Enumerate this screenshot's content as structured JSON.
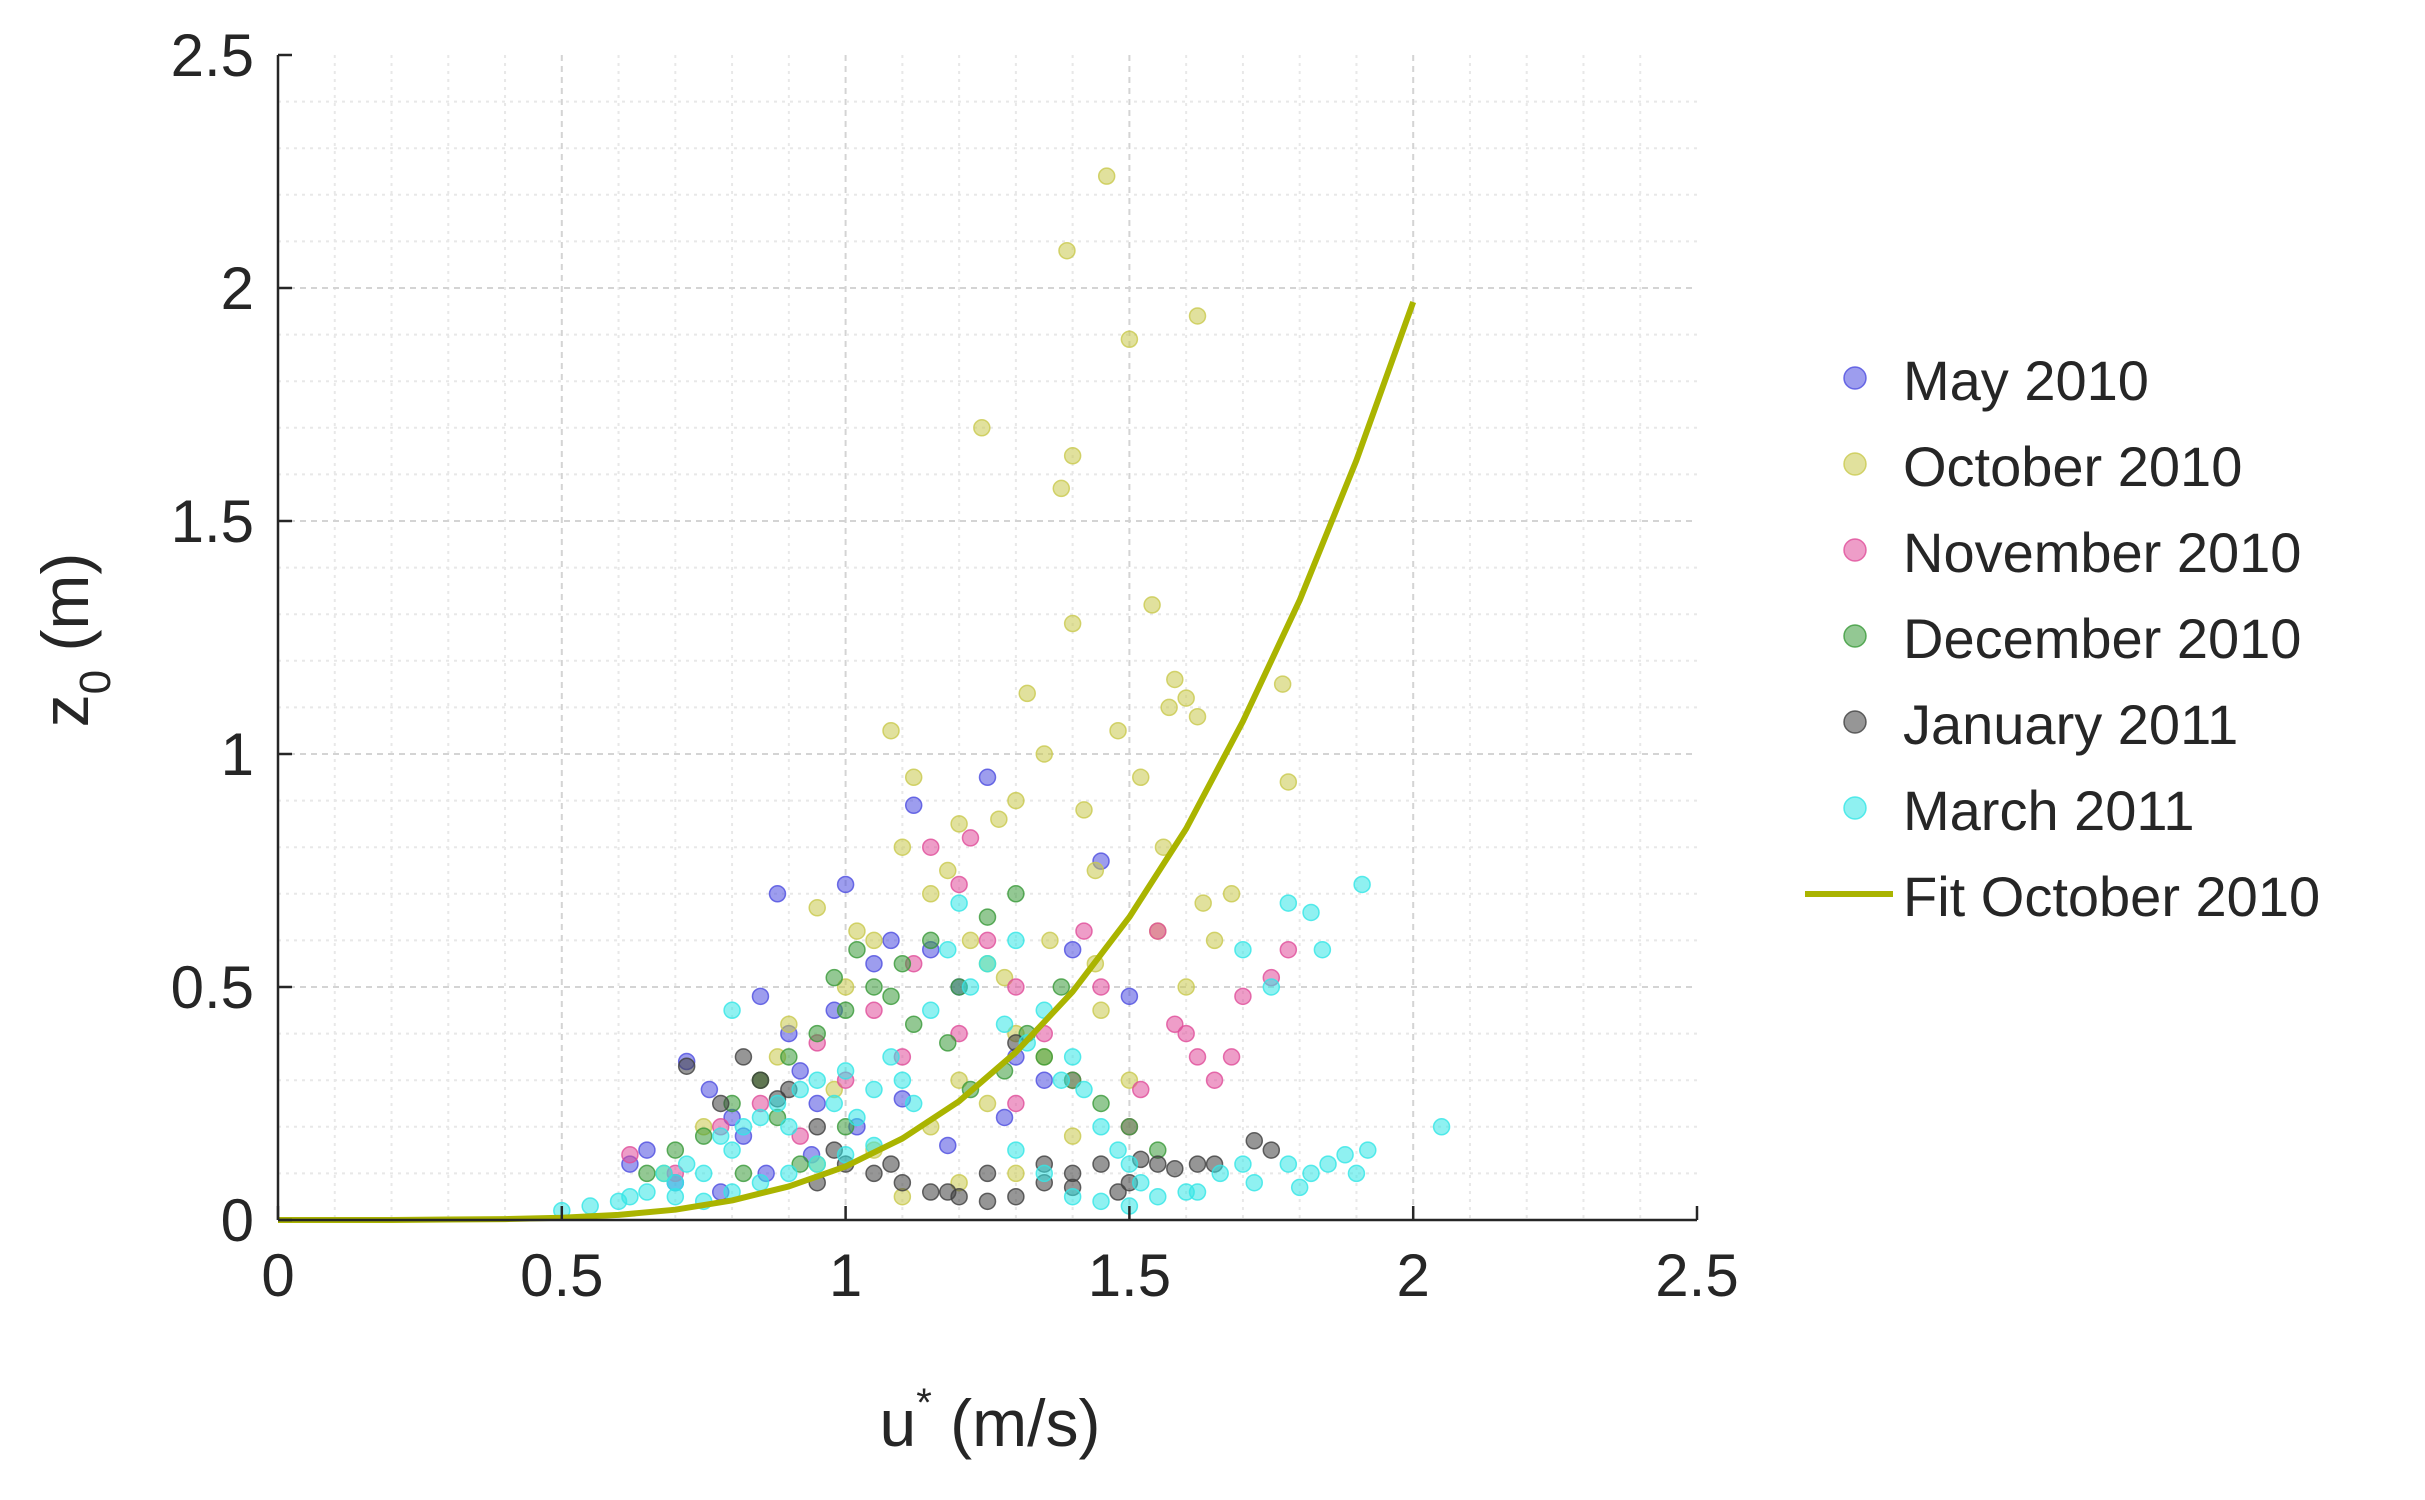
{
  "chart_data": {
    "type": "scatter",
    "title": "",
    "xlabel": {
      "base": "u",
      "sup": "*",
      "rest": " (m/s)"
    },
    "ylabel": {
      "base": "z",
      "sub": "0",
      "rest": " (m)"
    },
    "xlim": [
      0,
      2.5
    ],
    "ylim": [
      0,
      2.5
    ],
    "xticks": [
      0,
      0.5,
      1,
      1.5,
      2,
      2.5
    ],
    "xtick_labels": [
      "0",
      "0.5",
      "1",
      "1.5",
      "2",
      "2.5"
    ],
    "yticks": [
      0,
      0.5,
      1,
      1.5,
      2,
      2.5
    ],
    "ytick_labels": [
      "0",
      "0.5",
      "1",
      "1.5",
      "2",
      "2.5"
    ],
    "minor_grid_step": 0.1,
    "grid": true,
    "legend_position": "outside-right",
    "series": [
      {
        "name": "May 2010",
        "color": "#4d4de0",
        "points": [
          [
            0.62,
            0.12
          ],
          [
            0.65,
            0.15
          ],
          [
            0.72,
            0.34
          ],
          [
            0.76,
            0.28
          ],
          [
            0.8,
            0.22
          ],
          [
            0.82,
            0.18
          ],
          [
            0.85,
            0.48
          ],
          [
            0.88,
            0.7
          ],
          [
            0.9,
            0.4
          ],
          [
            0.92,
            0.32
          ],
          [
            0.95,
            0.25
          ],
          [
            0.98,
            0.45
          ],
          [
            1.0,
            0.72
          ],
          [
            1.05,
            0.55
          ],
          [
            1.08,
            0.6
          ],
          [
            1.12,
            0.89
          ],
          [
            1.15,
            0.58
          ],
          [
            1.2,
            0.5
          ],
          [
            1.25,
            0.95
          ],
          [
            1.3,
            0.35
          ],
          [
            1.35,
            0.3
          ],
          [
            1.4,
            0.58
          ],
          [
            1.45,
            0.77
          ],
          [
            1.5,
            0.48
          ],
          [
            0.7,
            0.08
          ],
          [
            0.78,
            0.06
          ],
          [
            0.86,
            0.1
          ],
          [
            0.94,
            0.14
          ],
          [
            1.02,
            0.2
          ],
          [
            1.1,
            0.26
          ],
          [
            1.18,
            0.16
          ],
          [
            1.28,
            0.22
          ]
        ]
      },
      {
        "name": "October 2010",
        "color": "#c9c94d",
        "points": [
          [
            0.68,
            0.1
          ],
          [
            0.75,
            0.2
          ],
          [
            0.85,
            0.3
          ],
          [
            0.9,
            0.42
          ],
          [
            0.95,
            0.67
          ],
          [
            1.0,
            0.5
          ],
          [
            1.05,
            0.6
          ],
          [
            1.08,
            1.05
          ],
          [
            1.1,
            0.8
          ],
          [
            1.12,
            0.95
          ],
          [
            1.15,
            0.7
          ],
          [
            1.2,
            0.85
          ],
          [
            1.22,
            0.6
          ],
          [
            1.24,
            1.7
          ],
          [
            1.25,
            0.55
          ],
          [
            1.27,
            0.86
          ],
          [
            1.3,
            0.9
          ],
          [
            1.32,
            1.13
          ],
          [
            1.35,
            1.0
          ],
          [
            1.38,
            1.57
          ],
          [
            1.39,
            2.08
          ],
          [
            1.4,
            1.64
          ],
          [
            1.4,
            1.28
          ],
          [
            1.42,
            0.88
          ],
          [
            1.44,
            0.75
          ],
          [
            1.46,
            2.24
          ],
          [
            1.48,
            1.05
          ],
          [
            1.5,
            1.89
          ],
          [
            1.52,
            0.95
          ],
          [
            1.54,
            1.32
          ],
          [
            1.56,
            0.8
          ],
          [
            1.57,
            1.1
          ],
          [
            1.58,
            1.16
          ],
          [
            1.6,
            1.12
          ],
          [
            1.62,
            1.94
          ],
          [
            1.62,
            1.08
          ],
          [
            1.63,
            0.68
          ],
          [
            1.65,
            0.6
          ],
          [
            1.77,
            1.15
          ],
          [
            1.78,
            0.94
          ],
          [
            1.3,
            0.4
          ],
          [
            1.35,
            0.35
          ],
          [
            1.45,
            0.45
          ],
          [
            1.5,
            0.3
          ],
          [
            1.55,
            0.62
          ],
          [
            1.2,
            0.3
          ],
          [
            1.25,
            0.25
          ],
          [
            1.15,
            0.2
          ],
          [
            1.05,
            0.15
          ],
          [
            0.95,
            0.12
          ],
          [
            1.1,
            0.05
          ],
          [
            1.2,
            0.08
          ],
          [
            1.3,
            0.1
          ],
          [
            1.4,
            0.18
          ],
          [
            1.6,
            0.5
          ],
          [
            1.68,
            0.7
          ],
          [
            0.88,
            0.35
          ],
          [
            0.98,
            0.28
          ],
          [
            1.02,
            0.62
          ],
          [
            1.18,
            0.75
          ],
          [
            1.28,
            0.52
          ],
          [
            1.36,
            0.6
          ],
          [
            1.44,
            0.55
          ]
        ]
      },
      {
        "name": "November 2010",
        "color": "#e04d9a",
        "points": [
          [
            0.62,
            0.14
          ],
          [
            0.7,
            0.1
          ],
          [
            0.78,
            0.2
          ],
          [
            0.85,
            0.25
          ],
          [
            0.95,
            0.38
          ],
          [
            1.05,
            0.45
          ],
          [
            1.12,
            0.55
          ],
          [
            1.15,
            0.8
          ],
          [
            1.2,
            0.72
          ],
          [
            1.22,
            0.82
          ],
          [
            1.25,
            0.6
          ],
          [
            1.3,
            0.5
          ],
          [
            1.35,
            0.4
          ],
          [
            1.4,
            0.3
          ],
          [
            1.45,
            0.5
          ],
          [
            1.5,
            0.2
          ],
          [
            1.55,
            0.62
          ],
          [
            1.6,
            0.4
          ],
          [
            1.65,
            0.3
          ],
          [
            1.68,
            0.35
          ],
          [
            1.7,
            0.48
          ],
          [
            1.75,
            0.52
          ],
          [
            1.78,
            0.58
          ],
          [
            1.58,
            0.42
          ],
          [
            1.62,
            0.35
          ],
          [
            1.3,
            0.25
          ],
          [
            1.2,
            0.4
          ],
          [
            1.1,
            0.35
          ],
          [
            1.0,
            0.3
          ],
          [
            0.92,
            0.18
          ],
          [
            1.42,
            0.62
          ],
          [
            1.52,
            0.28
          ]
        ]
      },
      {
        "name": "December 2010",
        "color": "#3a9a3a",
        "points": [
          [
            0.65,
            0.1
          ],
          [
            0.7,
            0.15
          ],
          [
            0.75,
            0.18
          ],
          [
            0.8,
            0.25
          ],
          [
            0.85,
            0.3
          ],
          [
            0.88,
            0.22
          ],
          [
            0.9,
            0.35
          ],
          [
            0.95,
            0.4
          ],
          [
            0.98,
            0.52
          ],
          [
            1.0,
            0.45
          ],
          [
            1.02,
            0.58
          ],
          [
            1.05,
            0.5
          ],
          [
            1.08,
            0.48
          ],
          [
            1.1,
            0.55
          ],
          [
            1.12,
            0.42
          ],
          [
            1.15,
            0.6
          ],
          [
            1.18,
            0.38
          ],
          [
            1.2,
            0.5
          ],
          [
            1.25,
            0.65
          ],
          [
            1.3,
            0.7
          ],
          [
            1.32,
            0.4
          ],
          [
            1.35,
            0.35
          ],
          [
            1.38,
            0.5
          ],
          [
            1.4,
            0.3
          ],
          [
            1.45,
            0.25
          ],
          [
            1.5,
            0.2
          ],
          [
            1.55,
            0.15
          ],
          [
            1.0,
            0.2
          ],
          [
            0.92,
            0.12
          ],
          [
            0.82,
            0.1
          ],
          [
            1.22,
            0.28
          ],
          [
            1.28,
            0.32
          ]
        ]
      },
      {
        "name": "January 2011",
        "color": "#404040",
        "points": [
          [
            0.72,
            0.33
          ],
          [
            0.78,
            0.25
          ],
          [
            0.82,
            0.35
          ],
          [
            0.85,
            0.3
          ],
          [
            0.88,
            0.26
          ],
          [
            0.9,
            0.28
          ],
          [
            0.95,
            0.2
          ],
          [
            0.98,
            0.15
          ],
          [
            1.0,
            0.12
          ],
          [
            1.05,
            0.1
          ],
          [
            1.1,
            0.08
          ],
          [
            1.15,
            0.06
          ],
          [
            1.2,
            0.05
          ],
          [
            1.25,
            0.04
          ],
          [
            1.3,
            0.05
          ],
          [
            1.35,
            0.08
          ],
          [
            1.4,
            0.1
          ],
          [
            1.45,
            0.12
          ],
          [
            1.5,
            0.08
          ],
          [
            1.52,
            0.13
          ],
          [
            1.55,
            0.12
          ],
          [
            1.58,
            0.11
          ],
          [
            1.62,
            0.12
          ],
          [
            1.65,
            0.12
          ],
          [
            1.72,
            0.17
          ],
          [
            1.75,
            0.15
          ],
          [
            1.3,
            0.38
          ],
          [
            1.18,
            0.06
          ],
          [
            1.08,
            0.12
          ],
          [
            0.95,
            0.08
          ],
          [
            1.4,
            0.07
          ],
          [
            1.48,
            0.06
          ],
          [
            1.25,
            0.1
          ],
          [
            1.35,
            0.12
          ]
        ]
      },
      {
        "name": "March 2011",
        "color": "#33e6e6",
        "points": [
          [
            0.5,
            0.02
          ],
          [
            0.55,
            0.03
          ],
          [
            0.6,
            0.04
          ],
          [
            0.65,
            0.06
          ],
          [
            0.7,
            0.08
          ],
          [
            0.72,
            0.12
          ],
          [
            0.75,
            0.1
          ],
          [
            0.78,
            0.18
          ],
          [
            0.8,
            0.15
          ],
          [
            0.82,
            0.2
          ],
          [
            0.85,
            0.22
          ],
          [
            0.88,
            0.25
          ],
          [
            0.9,
            0.2
          ],
          [
            0.92,
            0.28
          ],
          [
            0.95,
            0.3
          ],
          [
            0.98,
            0.25
          ],
          [
            1.0,
            0.32
          ],
          [
            1.02,
            0.22
          ],
          [
            1.05,
            0.28
          ],
          [
            1.08,
            0.35
          ],
          [
            1.1,
            0.3
          ],
          [
            1.12,
            0.25
          ],
          [
            1.15,
            0.45
          ],
          [
            1.18,
            0.58
          ],
          [
            1.2,
            0.68
          ],
          [
            1.22,
            0.5
          ],
          [
            1.25,
            0.55
          ],
          [
            1.3,
            0.6
          ],
          [
            1.35,
            0.45
          ],
          [
            1.4,
            0.35
          ],
          [
            1.42,
            0.28
          ],
          [
            1.45,
            0.2
          ],
          [
            1.48,
            0.15
          ],
          [
            1.5,
            0.12
          ],
          [
            1.52,
            0.08
          ],
          [
            1.55,
            0.05
          ],
          [
            1.6,
            0.06
          ],
          [
            1.62,
            0.06
          ],
          [
            1.66,
            0.1
          ],
          [
            1.7,
            0.12
          ],
          [
            1.72,
            0.08
          ],
          [
            1.75,
            0.5
          ],
          [
            1.78,
            0.12
          ],
          [
            1.8,
            0.07
          ],
          [
            1.82,
            0.1
          ],
          [
            1.85,
            0.12
          ],
          [
            1.88,
            0.14
          ],
          [
            1.9,
            0.1
          ],
          [
            1.92,
            0.15
          ],
          [
            1.78,
            0.68
          ],
          [
            1.82,
            0.66
          ],
          [
            1.84,
            0.58
          ],
          [
            1.91,
            0.72
          ],
          [
            1.7,
            0.58
          ],
          [
            2.05,
            0.2
          ],
          [
            0.7,
            0.05
          ],
          [
            0.75,
            0.04
          ],
          [
            0.8,
            0.06
          ],
          [
            0.85,
            0.08
          ],
          [
            0.9,
            0.1
          ],
          [
            0.95,
            0.12
          ],
          [
            1.0,
            0.14
          ],
          [
            1.05,
            0.16
          ],
          [
            0.62,
            0.05
          ],
          [
            0.68,
            0.1
          ],
          [
            1.28,
            0.42
          ],
          [
            1.32,
            0.38
          ],
          [
            1.38,
            0.3
          ],
          [
            0.8,
            0.45
          ],
          [
            1.3,
            0.15
          ],
          [
            1.35,
            0.1
          ],
          [
            1.4,
            0.05
          ],
          [
            1.45,
            0.04
          ],
          [
            1.5,
            0.03
          ]
        ]
      }
    ],
    "fit": {
      "name": "Fit October 2010",
      "color": "#aab400",
      "x": [
        0,
        0.1,
        0.2,
        0.3,
        0.4,
        0.5,
        0.6,
        0.7,
        0.8,
        0.9,
        1.0,
        1.1,
        1.2,
        1.3,
        1.4,
        1.5,
        1.6,
        1.7,
        1.8,
        1.9,
        2.0
      ],
      "y": [
        0,
        0,
        0,
        0.001,
        0.002,
        0.005,
        0.011,
        0.022,
        0.042,
        0.072,
        0.115,
        0.175,
        0.255,
        0.36,
        0.49,
        0.65,
        0.84,
        1.07,
        1.33,
        1.63,
        1.97
      ]
    }
  }
}
